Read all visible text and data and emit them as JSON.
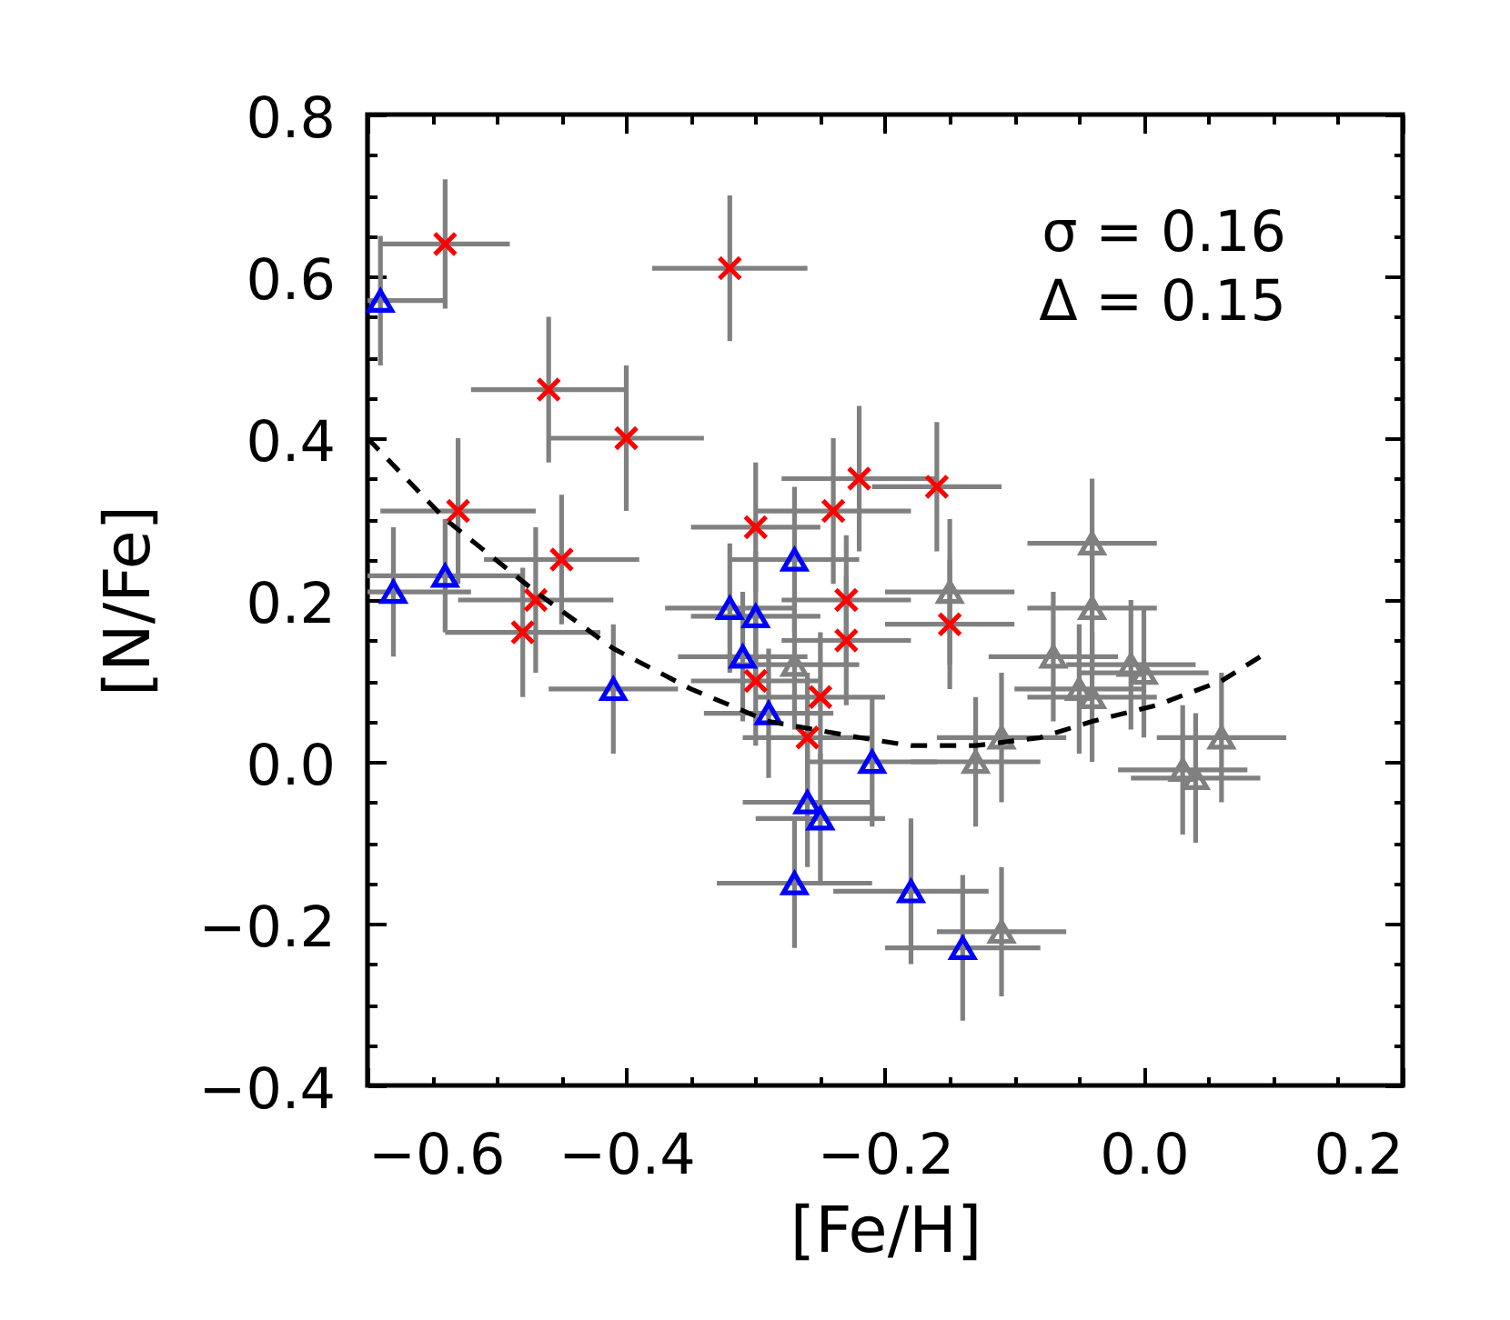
{
  "chart_data": {
    "type": "scatter",
    "xlabel": "[Fe/H]",
    "ylabel": "[N/Fe]",
    "annotations": [
      "σ = 0.16",
      "Δ = 0.15"
    ],
    "xlim": [
      -0.6,
      0.2
    ],
    "ylim": [
      -0.4,
      0.8
    ],
    "xticks": [
      {
        "value": -0.6,
        "label": "−0.6"
      },
      {
        "value": -0.55,
        "label": null
      },
      {
        "value": -0.5,
        "label": null
      },
      {
        "value": -0.45,
        "label": null
      },
      {
        "value": -0.4,
        "label": "−0.4"
      },
      {
        "value": -0.35,
        "label": null
      },
      {
        "value": -0.3,
        "label": null
      },
      {
        "value": -0.25,
        "label": null
      },
      {
        "value": -0.2,
        "label": "−0.2"
      },
      {
        "value": -0.15,
        "label": null
      },
      {
        "value": -0.1,
        "label": null
      },
      {
        "value": -0.05,
        "label": null
      },
      {
        "value": 0,
        "label": "0.0"
      },
      {
        "value": 0.05,
        "label": null
      },
      {
        "value": 0.1,
        "label": null
      },
      {
        "value": 0.15,
        "label": null
      },
      {
        "value": 0.2,
        "label": "0.2"
      }
    ],
    "yticks": [
      {
        "value": -0.4,
        "label": "−0.4"
      },
      {
        "value": -0.35,
        "label": null
      },
      {
        "value": -0.3,
        "label": null
      },
      {
        "value": -0.25,
        "label": null
      },
      {
        "value": -0.2,
        "label": "−0.2"
      },
      {
        "value": -0.15,
        "label": null
      },
      {
        "value": -0.1,
        "label": null
      },
      {
        "value": -0.05,
        "label": null
      },
      {
        "value": 0,
        "label": "0.0"
      },
      {
        "value": 0.05,
        "label": null
      },
      {
        "value": 0.1,
        "label": null
      },
      {
        "value": 0.15,
        "label": null
      },
      {
        "value": 0.2,
        "label": "0.2"
      },
      {
        "value": 0.25,
        "label": null
      },
      {
        "value": 0.3,
        "label": null
      },
      {
        "value": 0.35,
        "label": null
      },
      {
        "value": 0.4,
        "label": "0.4"
      },
      {
        "value": 0.45,
        "label": null
      },
      {
        "value": 0.5,
        "label": null
      },
      {
        "value": 0.55,
        "label": null
      },
      {
        "value": 0.6,
        "label": "0.6"
      },
      {
        "value": 0.65,
        "label": null
      },
      {
        "value": 0.7,
        "label": null
      },
      {
        "value": 0.75,
        "label": null
      },
      {
        "value": 0.8,
        "label": "0.8"
      }
    ],
    "series": [
      {
        "color": "#ff0000",
        "marker": "cross",
        "x": [
          -0.54,
          -0.32,
          -0.46,
          -0.4,
          -0.53,
          -0.45,
          -0.47,
          -0.48,
          -0.3,
          -0.24,
          -0.22,
          -0.16,
          -0.15,
          -0.3,
          -0.25,
          -0.26,
          -0.23,
          -0.23
        ],
        "values": [
          0.64,
          0.61,
          0.46,
          0.4,
          0.31,
          0.25,
          0.2,
          0.16,
          0.29,
          0.31,
          0.35,
          0.34,
          0.17,
          0.1,
          0.08,
          0.03,
          0.15,
          0.2
        ],
        "xerrors": [
          0.05,
          0.06,
          0.06,
          0.06,
          0.06,
          0.06,
          0.06,
          0.06,
          0.05,
          0.06,
          0.06,
          0.05,
          0.05,
          0.05,
          0.05,
          0.05,
          0.05,
          0.05
        ],
        "errors": [
          0.08,
          0.09,
          0.09,
          0.09,
          0.09,
          0.08,
          0.09,
          0.08,
          0.08,
          0.09,
          0.09,
          0.08,
          0.08,
          0.08,
          0.08,
          0.08,
          0.08,
          0.08
        ]
      },
      {
        "color": "#0000ff",
        "marker": "triangle",
        "x": [
          -0.59,
          -0.58,
          -0.54,
          -0.41,
          -0.32,
          -0.3,
          -0.27,
          -0.21,
          -0.18,
          -0.14,
          -0.31,
          -0.29,
          -0.26,
          -0.25,
          -0.27
        ],
        "values": [
          0.57,
          0.21,
          0.23,
          0.09,
          0.19,
          0.18,
          0.25,
          0.0,
          -0.16,
          -0.23,
          0.13,
          0.06,
          -0.05,
          -0.07,
          -0.15
        ],
        "xerrors": [
          [
            -0.6,
            -0.54
          ],
          [
            -0.6,
            -0.52
          ],
          [
            -0.6,
            -0.48
          ],
          0.05,
          0.05,
          0.05,
          0.05,
          0.05,
          0.06,
          0.06,
          0.05,
          0.05,
          0.05,
          0.05,
          0.06
        ],
        "errors": [
          0.08,
          0.08,
          0.07,
          0.08,
          0.08,
          0.08,
          0.09,
          0.08,
          0.09,
          0.09,
          0.08,
          0.08,
          0.08,
          0.08,
          0.08
        ]
      },
      {
        "color": "#808080",
        "marker": "triangle",
        "x": [
          -0.04,
          -0.15,
          -0.04,
          -0.04,
          -0.05,
          -0.07,
          -0.01,
          0.0,
          0.03,
          0.04,
          0.06,
          -0.13,
          -0.11,
          -0.11,
          -0.27
        ],
        "values": [
          0.27,
          0.21,
          0.19,
          0.08,
          0.09,
          0.13,
          0.12,
          0.11,
          -0.01,
          -0.02,
          0.03,
          0.0,
          0.03,
          -0.21,
          0.12
        ],
        "xerrors": [
          0.05,
          0.05,
          0.05,
          0.05,
          0.05,
          0.05,
          0.05,
          0.05,
          0.05,
          0.05,
          0.05,
          0.05,
          0.05,
          0.05,
          0.05
        ],
        "errors": [
          0.08,
          0.09,
          0.08,
          0.08,
          0.08,
          0.08,
          0.08,
          0.08,
          0.08,
          0.08,
          0.08,
          0.08,
          0.08,
          0.08,
          0.08
        ]
      },
      {
        "type": "line",
        "color": "#000000",
        "line_style": "dashed",
        "marker": "none",
        "x": [
          -0.6,
          -0.54,
          -0.47,
          -0.41,
          -0.35,
          -0.29,
          -0.22,
          -0.18,
          -0.13,
          -0.08,
          -0.04,
          0.01,
          0.06,
          0.09
        ],
        "values": [
          0.4,
          0.3,
          0.21,
          0.14,
          0.09,
          0.05,
          0.03,
          0.02,
          0.02,
          0.03,
          0.05,
          0.07,
          0.1,
          0.13
        ]
      }
    ]
  }
}
